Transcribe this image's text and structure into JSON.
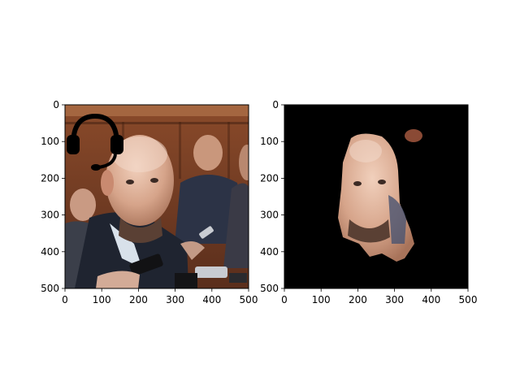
{
  "figure": {
    "background": "#ffffff"
  },
  "chart_data": [
    {
      "type": "image",
      "panel": "left",
      "content": "photo of a balding man at a press scrum with microphones pointed at him; a black headset drawn over the top-left corner",
      "x_range": [
        0,
        500
      ],
      "y_range": [
        0,
        500
      ],
      "y_inverted": true,
      "xticks": [
        0,
        100,
        200,
        300,
        400,
        500
      ],
      "yticks": [
        0,
        100,
        200,
        300,
        400,
        500
      ],
      "xtick_labels": [
        "0",
        "100",
        "200",
        "300",
        "400",
        "500"
      ],
      "ytick_labels": [
        "0",
        "100",
        "200",
        "300",
        "400",
        "500"
      ],
      "title": "",
      "xlabel": "",
      "ylabel": "",
      "grid": false,
      "colors": {
        "wall": "#6b3a22",
        "suit": "#1f2430",
        "skin": "#d6a48a",
        "headset": "#000000"
      }
    },
    {
      "type": "image",
      "panel": "right",
      "content": "segmentation mask on a black background keeping only the man's face and a small skin-colored blob at top-right",
      "x_range": [
        0,
        500
      ],
      "y_range": [
        0,
        500
      ],
      "y_inverted": true,
      "xticks": [
        0,
        100,
        200,
        300,
        400,
        500
      ],
      "yticks": [
        0,
        100,
        200,
        300,
        400,
        500
      ],
      "xtick_labels": [
        "0",
        "100",
        "200",
        "300",
        "400",
        "500"
      ],
      "ytick_labels": [
        "0",
        "100",
        "200",
        "300",
        "400",
        "500"
      ],
      "title": "",
      "xlabel": "",
      "ylabel": "",
      "grid": false,
      "colors": {
        "background": "#000000",
        "skin": "#d6a48a",
        "blob": "#8a4a35"
      }
    }
  ]
}
